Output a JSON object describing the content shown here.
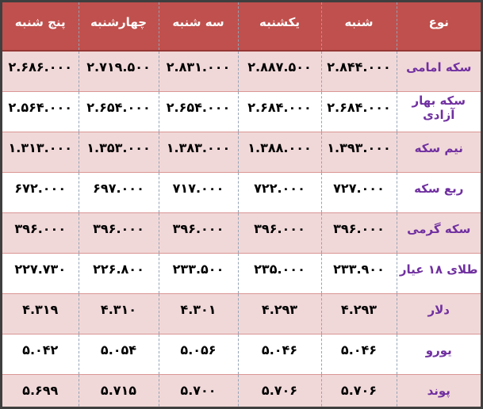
{
  "colors": {
    "header_bg": "#c0504d",
    "header_text": "#ffffff",
    "header_bottom_border": "#953735",
    "pink_row_bg": "#f1d8d8",
    "white_row_bg": "#ffffff",
    "label_text": "#7030a0",
    "number_text": "#000000",
    "row_divider": "#d99694",
    "column_divider_dashed": "#93a2b4",
    "outer_border": "#3f3f3f"
  },
  "table": {
    "columns": [
      "نوع",
      "شنبه",
      "یکشنبه",
      "سه شنبه",
      "چهارشنبه",
      "پنج شنبه"
    ],
    "rows": [
      {
        "label": "سکه امامی",
        "values": [
          "۲.۸۴۴.۰۰۰",
          "۲.۸۸۷.۵۰۰",
          "۲.۸۳۱.۰۰۰",
          "۲.۷۱۹.۵۰۰",
          "۲.۶۸۶.۰۰۰"
        ]
      },
      {
        "label": "سکه بهار آزادی",
        "values": [
          "۲.۶۸۴.۰۰۰",
          "۲.۶۸۴.۰۰۰",
          "۲.۶۵۴.۰۰۰",
          "۲.۶۵۴.۰۰۰",
          "۲.۵۶۴.۰۰۰"
        ]
      },
      {
        "label": "نیم سکه",
        "values": [
          "۱.۳۹۳.۰۰۰",
          "۱.۳۸۸.۰۰۰",
          "۱.۳۸۳.۰۰۰",
          "۱.۳۵۳.۰۰۰",
          "۱.۳۱۳.۰۰۰"
        ]
      },
      {
        "label": "ربع سکه",
        "values": [
          "۷۲۷.۰۰۰",
          "۷۲۲.۰۰۰",
          "۷۱۷.۰۰۰",
          "۶۹۷.۰۰۰",
          "۶۷۲.۰۰۰"
        ]
      },
      {
        "label": "سکه گرمی",
        "values": [
          "۳۹۶.۰۰۰",
          "۳۹۶.۰۰۰",
          "۳۹۶.۰۰۰",
          "۳۹۶.۰۰۰",
          "۳۹۶.۰۰۰"
        ]
      },
      {
        "label": "طلای ۱۸ عیار",
        "values": [
          "۲۳۳.۹۰۰",
          "۲۳۵.۰۰۰",
          "۲۳۳.۵۰۰",
          "۲۲۶.۸۰۰",
          "۲۲۷.۷۳۰"
        ]
      },
      {
        "label": "دلار",
        "values": [
          "۴.۲۹۳",
          "۴.۲۹۳",
          "۴.۳۰۱",
          "۴.۳۱۰",
          "۴.۳۱۹"
        ]
      },
      {
        "label": "یورو",
        "values": [
          "۵.۰۴۶",
          "۵.۰۴۶",
          "۵.۰۵۶",
          "۵.۰۵۴",
          "۵.۰۴۲"
        ]
      },
      {
        "label": "پوند",
        "values": [
          "۵.۷۰۶",
          "۵.۷۰۶",
          "۵.۷۰۰",
          "۵.۷۱۵",
          "۵.۶۹۹"
        ]
      }
    ]
  },
  "chart_data": {
    "type": "table",
    "direction": "rtl",
    "columns": [
      "نوع",
      "شنبه",
      "یکشنبه",
      "سه شنبه",
      "چهارشنبه",
      "پنج شنبه"
    ],
    "rows": [
      {
        "label": "سکه امامی",
        "values": [
          2844000,
          2887500,
          2831000,
          2719500,
          2686000
        ]
      },
      {
        "label": "سکه بهار آزادی",
        "values": [
          2684000,
          2684000,
          2654000,
          2654000,
          2564000
        ]
      },
      {
        "label": "نیم سکه",
        "values": [
          1393000,
          1388000,
          1383000,
          1353000,
          1313000
        ]
      },
      {
        "label": "ربع سکه",
        "values": [
          727000,
          722000,
          717000,
          697000,
          672000
        ]
      },
      {
        "label": "سکه گرمی",
        "values": [
          396000,
          396000,
          396000,
          396000,
          396000
        ]
      },
      {
        "label": "طلای ۱۸ عیار",
        "values": [
          233900,
          235000,
          233500,
          226800,
          227730
        ]
      },
      {
        "label": "دلار",
        "values": [
          4293,
          4293,
          4301,
          4310,
          4319
        ]
      },
      {
        "label": "یورو",
        "values": [
          5046,
          5046,
          5056,
          5054,
          5042
        ]
      },
      {
        "label": "پوند",
        "values": [
          5706,
          5706,
          5700,
          5715,
          5699
        ]
      }
    ]
  }
}
